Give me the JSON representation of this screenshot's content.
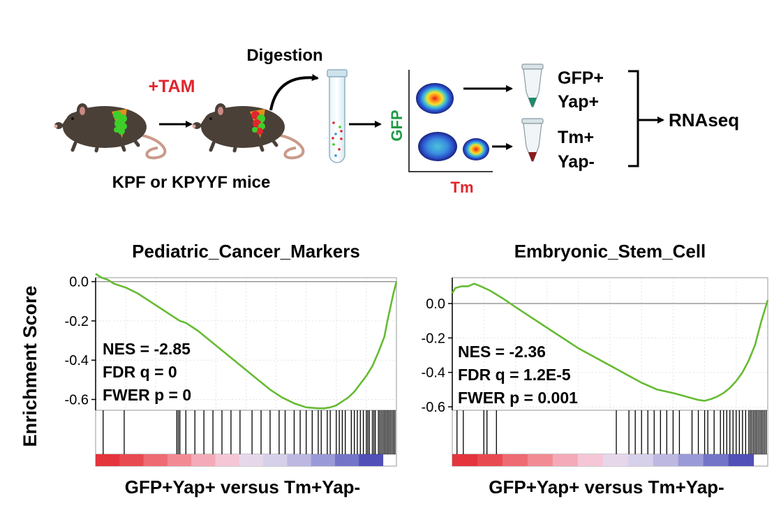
{
  "workflow": {
    "treatment_label": "+TAM",
    "digestion_label": "Digestion",
    "mice_label": "KPF or KPYYF mice",
    "flow_axis_y": "GFP",
    "flow_axis_x": "Tm",
    "population_1_line1": "GFP+",
    "population_1_line2": "Yap+",
    "population_2_line1": "Tm+",
    "population_2_line2": "Yap-",
    "output_label": "RNAseq",
    "colors": {
      "red": "#e0262c",
      "green": "#1e9b45",
      "tumor_green": "#3ccf2a"
    }
  },
  "y_axis_label": "Enrichment Score",
  "chart_data": [
    {
      "type": "line",
      "title": "Pediatric_Cancer_Markers",
      "xlabel": "GFP+Yap+ versus Tm+Yap-",
      "ylabel": "Enrichment Score",
      "yticks": [
        0.0,
        -0.2,
        -0.4,
        -0.6
      ],
      "ytick_labels": [
        "0.0",
        "-0.2",
        "-0.4",
        "-0.6"
      ],
      "ylim": [
        -0.655,
        0.02
      ],
      "xlim": [
        0,
        1
      ],
      "line_color": "#66bb33",
      "series": [
        {
          "x": [
            0,
            0.02,
            0.04,
            0.06,
            0.08,
            0.1,
            0.14,
            0.18,
            0.22,
            0.26,
            0.28,
            0.3,
            0.34,
            0.38,
            0.42,
            0.46,
            0.5,
            0.54,
            0.58,
            0.62,
            0.66,
            0.7,
            0.74,
            0.76,
            0.78,
            0.8,
            0.82,
            0.84,
            0.86,
            0.88,
            0.9,
            0.92,
            0.94,
            0.96,
            0.97,
            0.98,
            0.99,
            1.0
          ],
          "values": [
            0.04,
            0.02,
            0.01,
            -0.01,
            -0.02,
            -0.03,
            -0.06,
            -0.1,
            -0.14,
            -0.18,
            -0.2,
            -0.21,
            -0.25,
            -0.3,
            -0.35,
            -0.4,
            -0.45,
            -0.5,
            -0.55,
            -0.59,
            -0.62,
            -0.64,
            -0.645,
            -0.645,
            -0.64,
            -0.63,
            -0.61,
            -0.59,
            -0.56,
            -0.52,
            -0.48,
            -0.43,
            -0.36,
            -0.28,
            -0.2,
            -0.13,
            -0.06,
            0.0
          ]
        }
      ],
      "hits": [
        0.025,
        0.095,
        0.27,
        0.275,
        0.28,
        0.3,
        0.33,
        0.36,
        0.39,
        0.42,
        0.45,
        0.48,
        0.52,
        0.55,
        0.58,
        0.61,
        0.63,
        0.66,
        0.68,
        0.7,
        0.72,
        0.74,
        0.75,
        0.77,
        0.78,
        0.8,
        0.81,
        0.82,
        0.83,
        0.85,
        0.86,
        0.87,
        0.88,
        0.89,
        0.9,
        0.905,
        0.91,
        0.92,
        0.925,
        0.93,
        0.94,
        0.945,
        0.95,
        0.955,
        0.96,
        0.965,
        0.97,
        0.975,
        0.98,
        0.985,
        0.99,
        0.995
      ],
      "stats": [
        "NES = -2.85",
        "FDR q = 0",
        "FWER p = 0"
      ]
    },
    {
      "type": "line",
      "title": "Embryonic_Stem_Cell",
      "xlabel": "GFP+Yap+ versus Tm+Yap-",
      "ylabel": "Enrichment Score",
      "yticks": [
        0.0,
        -0.2,
        -0.4,
        -0.6
      ],
      "ytick_labels": [
        "0.0",
        "-0.2",
        "-0.4",
        "-0.6"
      ],
      "ylim": [
        -0.62,
        0.15
      ],
      "xlim": [
        0,
        1
      ],
      "line_color": "#66bb33",
      "series": [
        {
          "x": [
            0,
            0.01,
            0.03,
            0.05,
            0.07,
            0.09,
            0.12,
            0.16,
            0.2,
            0.25,
            0.3,
            0.35,
            0.4,
            0.45,
            0.5,
            0.55,
            0.6,
            0.65,
            0.7,
            0.75,
            0.78,
            0.8,
            0.82,
            0.84,
            0.86,
            0.88,
            0.9,
            0.92,
            0.94,
            0.96,
            0.97,
            0.98,
            0.99,
            1.0
          ],
          "values": [
            0.06,
            0.09,
            0.1,
            0.1,
            0.115,
            0.1,
            0.075,
            0.03,
            -0.02,
            -0.08,
            -0.14,
            -0.2,
            -0.26,
            -0.31,
            -0.36,
            -0.41,
            -0.46,
            -0.5,
            -0.52,
            -0.545,
            -0.56,
            -0.565,
            -0.555,
            -0.54,
            -0.52,
            -0.49,
            -0.45,
            -0.4,
            -0.33,
            -0.24,
            -0.17,
            -0.1,
            -0.04,
            0.02
          ]
        }
      ],
      "hits": [
        0.015,
        0.035,
        0.1,
        0.11,
        0.14,
        0.52,
        0.56,
        0.58,
        0.6,
        0.62,
        0.64,
        0.66,
        0.68,
        0.7,
        0.72,
        0.76,
        0.78,
        0.8,
        0.81,
        0.83,
        0.85,
        0.86,
        0.87,
        0.88,
        0.89,
        0.9,
        0.91,
        0.92,
        0.93,
        0.94,
        0.945,
        0.95,
        0.955,
        0.96,
        0.965,
        0.97,
        0.975,
        0.98,
        0.985,
        0.99,
        0.995
      ],
      "stats": [
        "NES = -2.36",
        "FDR q = 1.2E-5",
        "FWER p = 0.001"
      ]
    }
  ]
}
